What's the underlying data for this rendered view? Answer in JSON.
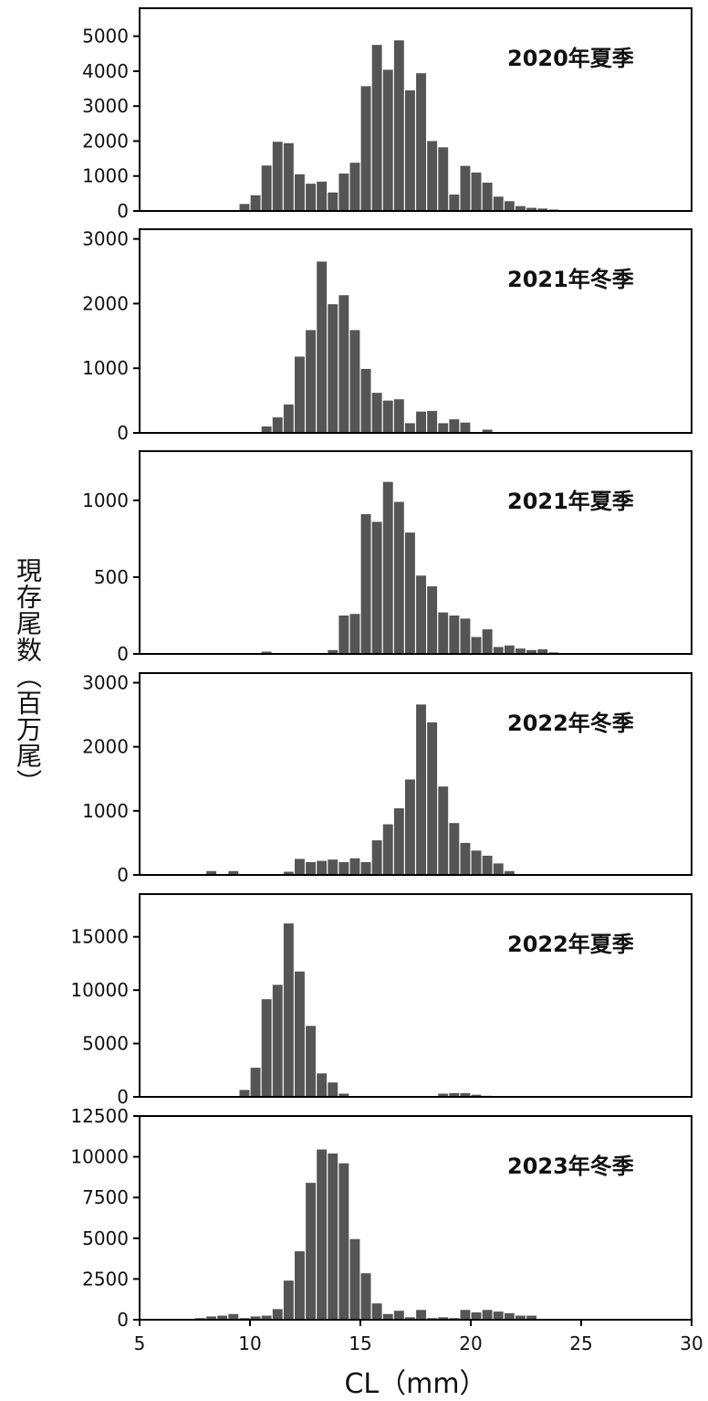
{
  "figure": {
    "ylabel": "現存尾数（百万尾）",
    "xlabel": "CL（mm）"
  },
  "chart_data": [
    {
      "type": "bar",
      "title": "2020年夏季",
      "bar_color": "#555555",
      "xlim": [
        5,
        30
      ],
      "ylim": [
        0,
        5800
      ],
      "yticks": [
        0,
        1000,
        2000,
        3000,
        4000,
        5000
      ],
      "bin_width": 0.5,
      "x": [
        9.75,
        10.25,
        10.75,
        11.25,
        11.75,
        12.25,
        12.75,
        13.25,
        13.75,
        14.25,
        14.75,
        15.25,
        15.75,
        16.25,
        16.75,
        17.25,
        17.75,
        18.25,
        18.75,
        19.25,
        19.75,
        20.25,
        20.75,
        21.25,
        21.75,
        22.25,
        22.75,
        23.25,
        23.75,
        24.25,
        24.75
      ],
      "values": [
        200,
        450,
        1300,
        1980,
        1940,
        1050,
        780,
        840,
        530,
        1070,
        1380,
        3570,
        4750,
        4040,
        4880,
        3450,
        3940,
        2000,
        1820,
        470,
        1290,
        1100,
        810,
        410,
        280,
        140,
        90,
        70,
        40,
        20,
        10
      ]
    },
    {
      "type": "bar",
      "title": "2021年冬季",
      "bar_color": "#555555",
      "xlim": [
        5,
        30
      ],
      "ylim": [
        0,
        3150
      ],
      "yticks": [
        0,
        1000,
        2000,
        3000
      ],
      "bin_width": 0.5,
      "x": [
        10.75,
        11.25,
        11.75,
        12.25,
        12.75,
        13.25,
        13.75,
        14.25,
        14.75,
        15.25,
        15.75,
        16.25,
        16.75,
        17.25,
        17.75,
        18.25,
        18.75,
        19.25,
        19.75,
        20.25,
        20.75
      ],
      "values": [
        100,
        240,
        440,
        1180,
        1590,
        2650,
        1990,
        2130,
        1590,
        990,
        620,
        500,
        520,
        150,
        330,
        340,
        150,
        210,
        160,
        10,
        50
      ]
    },
    {
      "type": "bar",
      "title": "2021年夏季",
      "bar_color": "#555555",
      "xlim": [
        5,
        30
      ],
      "ylim": [
        0,
        1320
      ],
      "yticks": [
        0,
        500,
        1000
      ],
      "bin_width": 0.5,
      "x": [
        10.75,
        13.25,
        13.75,
        14.25,
        14.75,
        15.25,
        15.75,
        16.25,
        16.75,
        17.25,
        17.75,
        18.25,
        18.75,
        19.25,
        19.75,
        20.25,
        20.75,
        21.25,
        21.75,
        22.25,
        22.75,
        23.25,
        23.75,
        24.25,
        24.75
      ],
      "values": [
        15,
        5,
        25,
        250,
        260,
        910,
        860,
        1120,
        990,
        790,
        510,
        440,
        270,
        250,
        230,
        110,
        160,
        45,
        55,
        35,
        25,
        30,
        10,
        5,
        5
      ]
    },
    {
      "type": "bar",
      "title": "2022年冬季",
      "bar_color": "#555555",
      "xlim": [
        5,
        30
      ],
      "ylim": [
        0,
        3150
      ],
      "yticks": [
        0,
        1000,
        2000,
        3000
      ],
      "bin_width": 0.5,
      "x": [
        8.25,
        9.25,
        11.75,
        12.25,
        12.75,
        13.25,
        13.75,
        14.25,
        14.75,
        15.25,
        15.75,
        16.25,
        16.75,
        17.25,
        17.75,
        18.25,
        18.75,
        19.25,
        19.75,
        20.25,
        20.75,
        21.25,
        21.75,
        22.25,
        22.75
      ],
      "values": [
        60,
        60,
        50,
        250,
        200,
        220,
        240,
        200,
        260,
        200,
        540,
        790,
        1040,
        1490,
        2660,
        2380,
        1380,
        810,
        500,
        380,
        300,
        180,
        60,
        10,
        5
      ]
    },
    {
      "type": "bar",
      "title": "2022年夏季",
      "bar_color": "#555555",
      "xlim": [
        5,
        30
      ],
      "ylim": [
        0,
        19000
      ],
      "yticks": [
        0,
        5000,
        10000,
        15000
      ],
      "bin_width": 0.5,
      "x": [
        9.75,
        10.25,
        10.75,
        11.25,
        11.75,
        12.25,
        12.75,
        13.25,
        13.75,
        14.25,
        14.75,
        18.75,
        19.25,
        19.75,
        20.25,
        20.75,
        21.25
      ],
      "values": [
        650,
        2730,
        9150,
        10500,
        16250,
        11750,
        6650,
        2200,
        1350,
        300,
        50,
        300,
        350,
        350,
        200,
        100,
        50
      ]
    },
    {
      "type": "bar",
      "title": "2023年冬季",
      "bar_color": "#555555",
      "xlim": [
        5,
        30
      ],
      "ylim": [
        0,
        12500
      ],
      "yticks": [
        0,
        2500,
        5000,
        7500,
        10000,
        12500
      ],
      "bin_width": 0.5,
      "x": [
        7.75,
        8.25,
        8.75,
        9.25,
        9.75,
        10.25,
        10.75,
        11.25,
        11.75,
        12.25,
        12.75,
        13.25,
        13.75,
        14.25,
        14.75,
        15.25,
        15.75,
        16.25,
        16.75,
        17.25,
        17.75,
        18.25,
        18.75,
        19.25,
        19.75,
        20.25,
        20.75,
        21.25,
        21.75,
        22.25,
        22.75
      ],
      "values": [
        100,
        200,
        250,
        350,
        100,
        200,
        250,
        650,
        2400,
        4200,
        8400,
        10450,
        10200,
        9600,
        4950,
        2850,
        1000,
        350,
        550,
        150,
        600,
        100,
        150,
        100,
        600,
        450,
        600,
        500,
        400,
        250,
        250
      ]
    }
  ],
  "x_axis": {
    "ticks": [
      5,
      10,
      15,
      20,
      25,
      30
    ]
  }
}
